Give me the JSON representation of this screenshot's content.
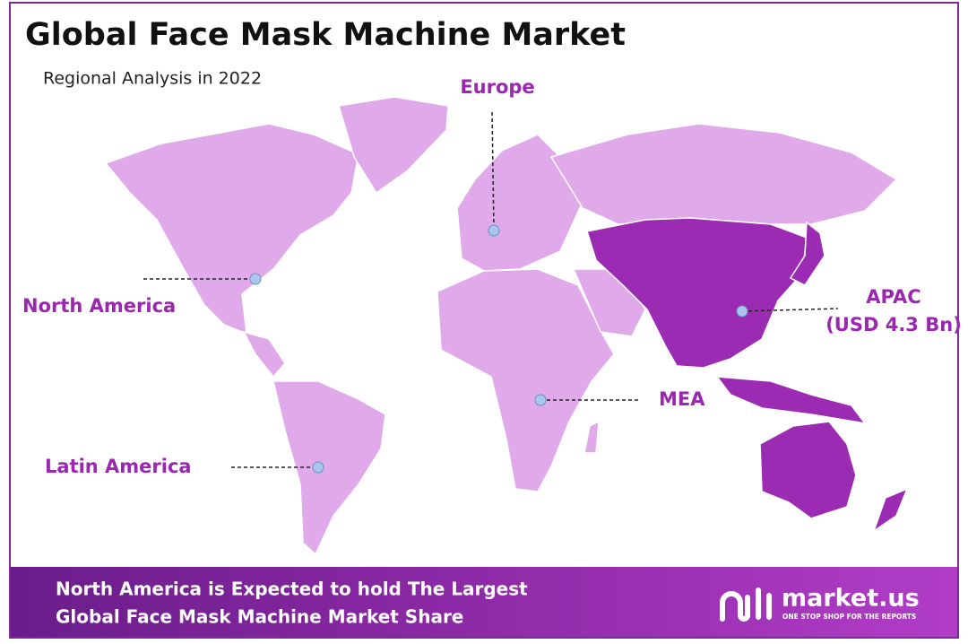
{
  "header": {
    "title": "Global Face Mask Machine Market",
    "subtitle": "Regional Analysis in 2022"
  },
  "regions": [
    {
      "label": "Europe"
    },
    {
      "label": "North America"
    },
    {
      "label": "APAC",
      "value_label": "(USD 4.3 Bn)"
    },
    {
      "label": "MEA"
    },
    {
      "label": "Latin America"
    }
  ],
  "footer": {
    "lines": [
      "North America is Expected to hold The Largest",
      "Global Face Mask Machine Market Share"
    ],
    "brand": "market.us",
    "tagline": "ONE STOP SHOP FOR THE REPORTS"
  }
}
